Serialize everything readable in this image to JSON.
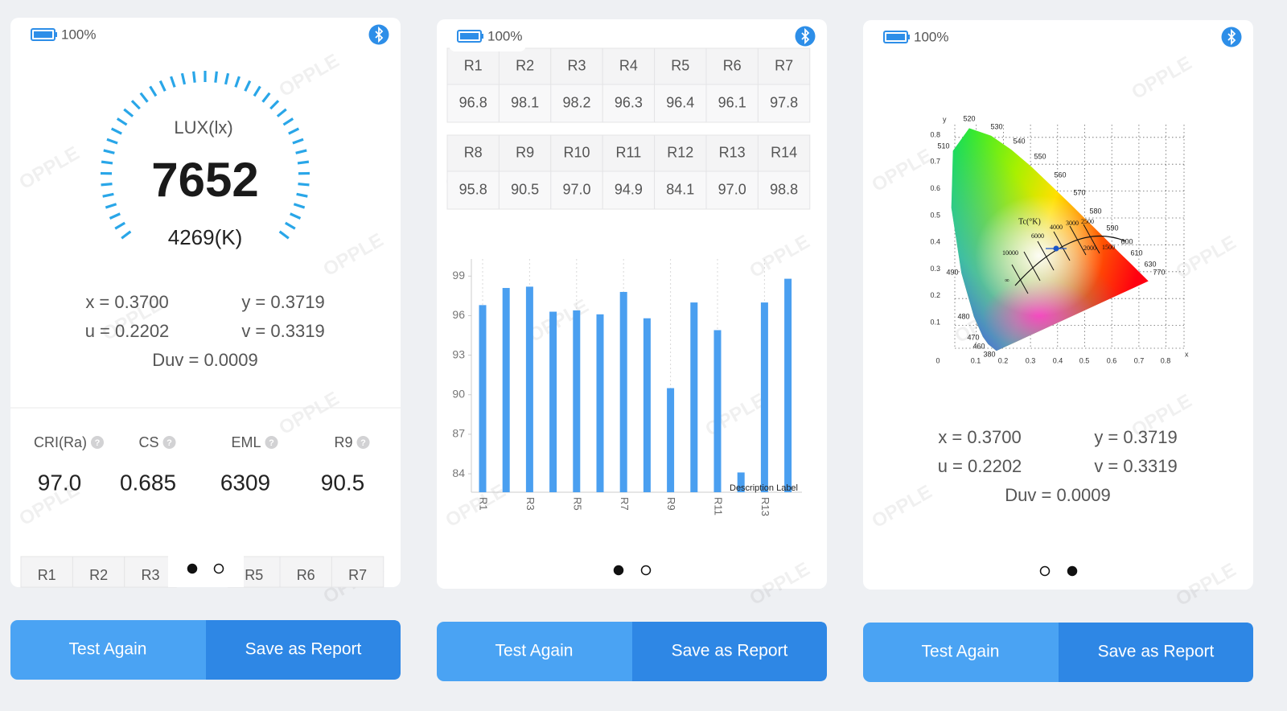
{
  "watermark": "OPPLE",
  "help_icon": "?",
  "buttons": {
    "test_again": "Test Again",
    "save_report": "Save as Report"
  },
  "panels": [
    {
      "battery": "100%",
      "gauge_label": "LUX(lx)",
      "lux": "7652",
      "cct": "4269(K)",
      "coords": {
        "x": "x = 0.3700",
        "y": "y = 0.3719",
        "u": "u = 0.2202",
        "v": "v = 0.3319",
        "duv": "Duv = 0.0009"
      },
      "metrics": [
        {
          "label": "CRI(Ra)",
          "value": "97.0"
        },
        {
          "label": "CS",
          "value": "0.685"
        },
        {
          "label": "EML",
          "value": "6309"
        },
        {
          "label": "R9",
          "value": "90.5"
        }
      ],
      "table_headers": [
        "R1",
        "R2",
        "R3",
        "R5",
        "R6",
        "R7"
      ]
    },
    {
      "battery": "100%",
      "tables": [
        {
          "headers": [
            "R1",
            "R2",
            "R3",
            "R4",
            "R5",
            "R6",
            "R7"
          ],
          "values": [
            "96.8",
            "98.1",
            "98.2",
            "96.3",
            "96.4",
            "96.1",
            "97.8"
          ]
        },
        {
          "headers": [
            "R8",
            "R9",
            "R10",
            "R11",
            "R12",
            "R13",
            "R14"
          ],
          "values": [
            "95.8",
            "90.5",
            "97.0",
            "94.9",
            "84.1",
            "97.0",
            "98.8"
          ]
        }
      ]
    },
    {
      "battery": "100%",
      "cie": {
        "x_label": "x",
        "y_label": "y",
        "xticks": [
          "0",
          "0.1",
          "0.2",
          "0.3",
          "0.4",
          "0.5",
          "0.6",
          "0.7",
          "0.8"
        ],
        "yticks": [
          "0.8",
          "0.7",
          "0.6",
          "0.5",
          "0.4",
          "0.3",
          "0.2",
          "0.1"
        ],
        "wavelengths": [
          "520",
          "530",
          "540",
          "550",
          "560",
          "570",
          "580",
          "590",
          "600",
          "610",
          "630",
          "770",
          "510",
          "490",
          "480",
          "470",
          "460",
          "380"
        ],
        "tc_label": "Tc(°K)",
        "cct_labels": [
          "10000",
          "6000",
          "4000",
          "3000",
          "2500",
          "2000",
          "1500",
          "∞"
        ]
      },
      "coords": {
        "x": "x = 0.3700",
        "y": "y = 0.3719",
        "u": "u = 0.2202",
        "v": "v = 0.3319",
        "duv": "Duv = 0.0009"
      }
    }
  ],
  "chart_data": {
    "type": "bar",
    "categories": [
      "R1",
      null,
      "R3",
      null,
      "R5",
      null,
      "R7",
      null,
      "R9",
      null,
      "R11",
      null,
      "R13",
      null
    ],
    "values": [
      96.8,
      98.1,
      98.2,
      96.3,
      96.4,
      96.1,
      97.8,
      95.8,
      90.5,
      97.0,
      94.9,
      84.1,
      97.0,
      98.8
    ],
    "color": "#4a9ff0",
    "ylim": [
      82.6,
      100.3
    ],
    "yticks": [
      84,
      87,
      90,
      93,
      96,
      99
    ],
    "annotation": "Description Label"
  }
}
